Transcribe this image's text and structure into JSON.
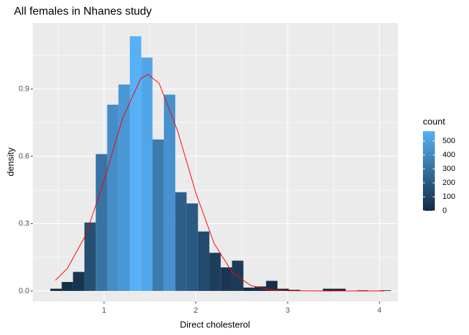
{
  "chart_data": {
    "type": "histogram",
    "title": "All females in Nhanes study",
    "x_label": "Direct cholesterol",
    "y_label": "density",
    "bins": [
      0.415,
      0.539,
      0.662,
      0.786,
      0.91,
      1.034,
      1.157,
      1.281,
      1.405,
      1.528,
      1.652,
      1.776,
      1.899,
      2.023,
      2.147,
      2.271,
      2.394,
      2.518,
      2.642,
      2.765,
      2.889,
      3.013,
      3.136,
      3.26,
      3.384,
      3.507,
      3.631,
      3.755,
      3.879,
      4.002,
      4.126
    ],
    "values": [
      0.01,
      0.04,
      0.085,
      0.305,
      0.61,
      0.83,
      0.92,
      1.135,
      1.04,
      0.675,
      0.875,
      0.44,
      0.39,
      0.265,
      0.17,
      0.105,
      0.135,
      0.015,
      0.02,
      0.045,
      0.01,
      0.005,
      0,
      0,
      0.01,
      0.01,
      0,
      0.003,
      0,
      0.003
    ],
    "curve": {
      "color": "#FF0000",
      "x": [
        0.47,
        0.6,
        0.8,
        1.0,
        1.2,
        1.4,
        1.48,
        1.6,
        1.8,
        2.0,
        2.2,
        2.4,
        2.6,
        2.8,
        3.0,
        3.4,
        4.05
      ],
      "values": [
        0.048,
        0.1,
        0.249,
        0.491,
        0.767,
        0.947,
        0.965,
        0.925,
        0.715,
        0.437,
        0.211,
        0.081,
        0.024,
        0.006,
        0.001,
        0,
        0
      ]
    },
    "xlim": [
      0.224,
      4.2
    ],
    "ylim": [
      -0.047,
      1.194
    ],
    "xticks": [
      1,
      2,
      3,
      4
    ],
    "yticks": [
      {
        "value": 0,
        "label": "0.0"
      },
      0.3,
      0.6,
      0.9
    ],
    "grid": true,
    "legend": {
      "title": "count",
      "low_color": "#132B43",
      "high_color": "#56B1F7",
      "lim": [
        0,
        570
      ],
      "ticks": [
        0,
        100,
        200,
        300,
        400,
        500
      ]
    }
  }
}
